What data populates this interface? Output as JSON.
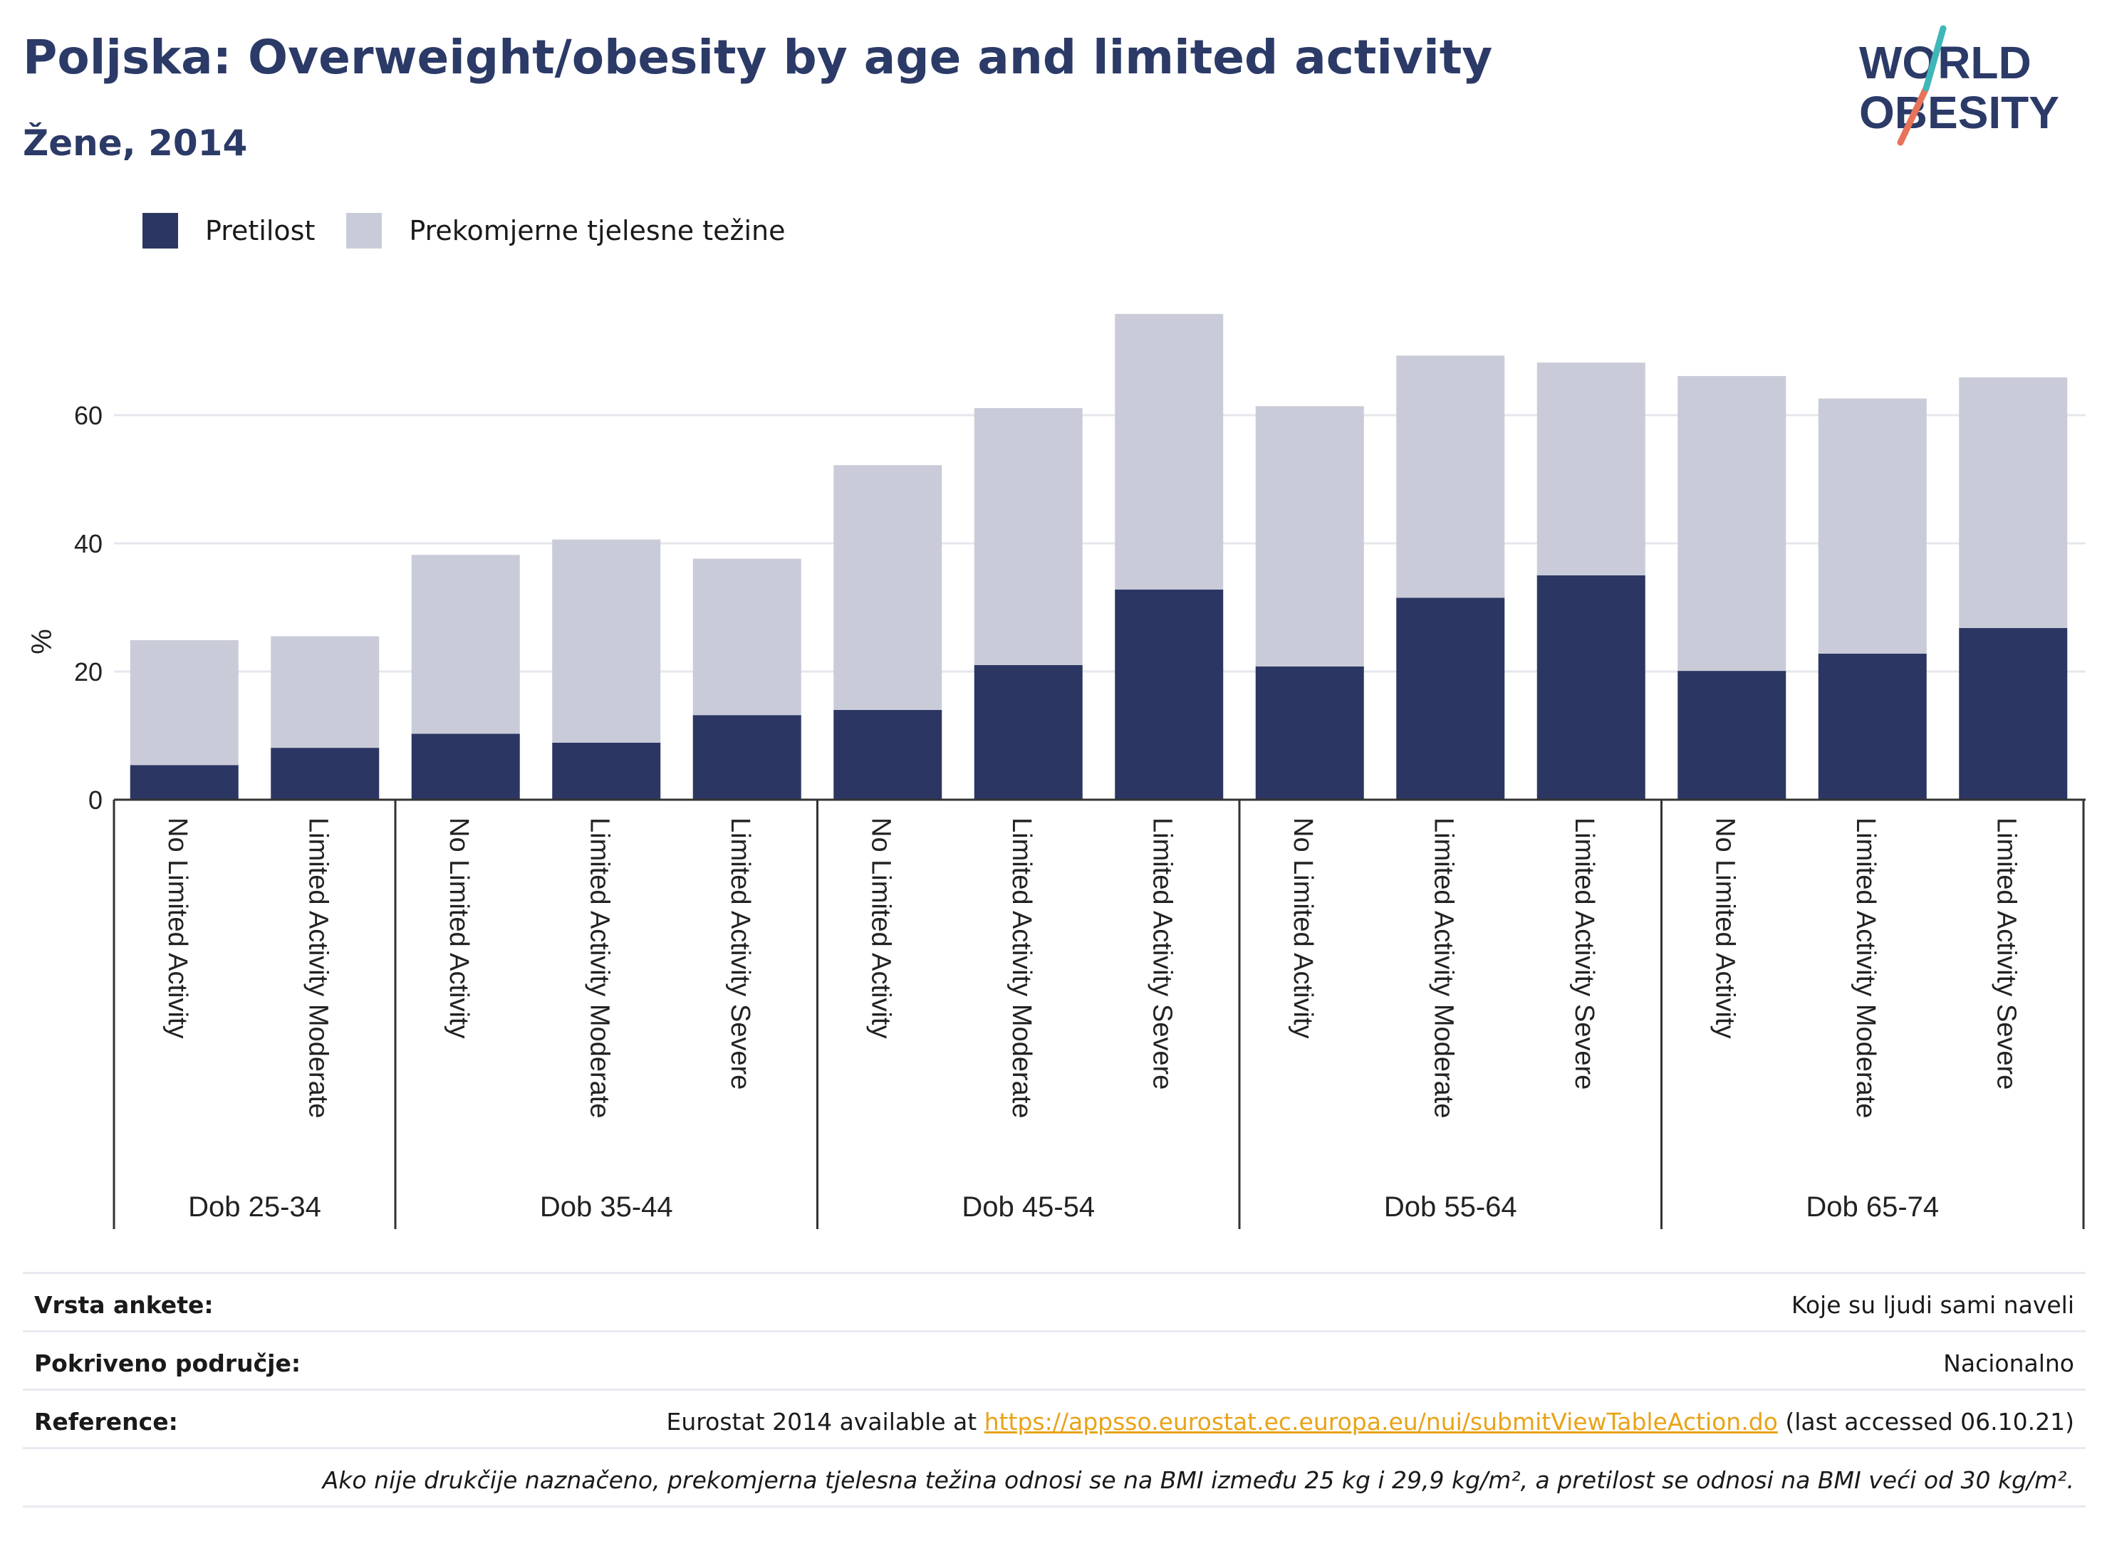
{
  "header": {
    "title": "Poljska: Overweight/obesity by age and limited activity",
    "subtitle": "Žene, 2014"
  },
  "logo": {
    "line1": "WORLD",
    "line2": "OBESITY"
  },
  "colors": {
    "obesity": "#2b3663",
    "overweight": "#c9ccd8",
    "text": "#2b3a67",
    "link": "#e8a317"
  },
  "chart_data": {
    "type": "bar",
    "stacked": true,
    "title": "Poljska: Overweight/obesity by age and limited activity",
    "subtitle": "Žene, 2014",
    "ylabel": "%",
    "ylim": [
      0,
      80
    ],
    "yticks": [
      0,
      20,
      40,
      60
    ],
    "grid": true,
    "legend_position": "top-left",
    "legend": [
      "Pretilost",
      "Prekomjerne tjelesne težine"
    ],
    "groups": [
      {
        "label": "Dob 25-34",
        "categories": [
          "No Limited Activity",
          "Limited Activity Moderate"
        ]
      },
      {
        "label": "Dob 35-44",
        "categories": [
          "No Limited Activity",
          "Limited Activity Moderate",
          "Limited Activity Severe"
        ]
      },
      {
        "label": "Dob 45-54",
        "categories": [
          "No Limited Activity",
          "Limited Activity Moderate",
          "Limited Activity Severe"
        ]
      },
      {
        "label": "Dob 55-64",
        "categories": [
          "No Limited Activity",
          "Limited Activity Moderate",
          "Limited Activity Severe"
        ]
      },
      {
        "label": "Dob 65-74",
        "categories": [
          "No Limited Activity",
          "Limited Activity Moderate",
          "Limited Activity Severe"
        ]
      }
    ],
    "series": [
      {
        "name": "Pretilost",
        "values": [
          5.4,
          8.1,
          10.3,
          8.9,
          13.2,
          14.0,
          21.0,
          32.8,
          20.8,
          31.5,
          35.0,
          20.1,
          22.8,
          26.8
        ]
      },
      {
        "name": "Prekomjerne tjelesne težine",
        "values": [
          19.5,
          17.4,
          27.9,
          31.7,
          24.4,
          38.2,
          40.1,
          43.0,
          40.6,
          37.8,
          33.2,
          46.0,
          39.8,
          39.1
        ]
      }
    ]
  },
  "info": {
    "survey_label": "Vrsta ankete:",
    "survey_value": "Koje su ljudi sami naveli",
    "area_label": "Pokriveno područje:",
    "area_value": "Nacionalno",
    "ref_label": "Reference:",
    "ref_prefix": "Eurostat 2014 available at ",
    "ref_link": "https://appsso.eurostat.ec.europa.eu/nui/submitViewTableAction.do",
    "ref_suffix": " (last accessed 06.10.21)",
    "note": "Ako nije drukčije naznačeno, prekomjerna tjelesna težina odnosi se na BMI između 25 kg i 29,9 kg/m², a pretilost se odnosi na BMI veći od 30 kg/m²."
  }
}
